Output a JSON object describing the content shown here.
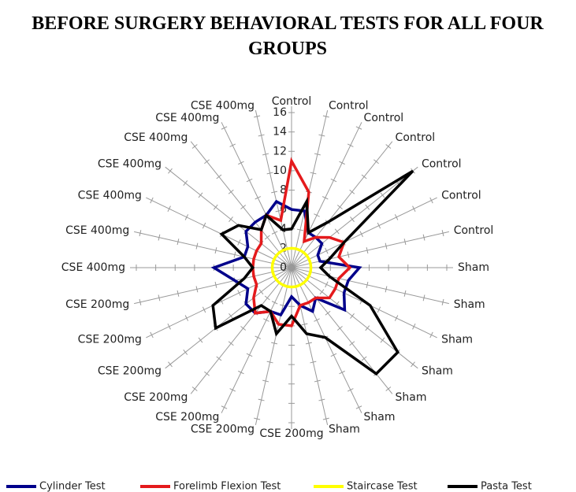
{
  "chart_data": {
    "type": "radar",
    "title": "BEFORE SURGERY BEHAVIORAL TESTS FOR ALL FOUR GROUPS",
    "categories": [
      "Control",
      "Control",
      "Control",
      "Control",
      "Control",
      "Control",
      "Control",
      "Sham",
      "Sham",
      "Sham",
      "Sham",
      "Sham",
      "Sham",
      "Sham",
      "CSE 200mg",
      "CSE 200mg",
      "CSE 200mg",
      "CSE 200mg",
      "CSE 200mg",
      "CSE 200mg",
      "CSE 200mg",
      "CSE 400mg",
      "CSE 400mg",
      "CSE 400mg",
      "CSE 400mg",
      "CSE 400mg",
      "CSE 400mg",
      "CSE 400mg"
    ],
    "series": [
      {
        "name": "Cylinder Test",
        "color": "#00008b",
        "values": [
          6,
          6,
          4,
          4,
          4,
          3,
          3,
          7,
          6,
          6,
          7,
          4,
          5,
          4,
          3,
          5,
          5,
          6,
          6,
          5,
          6,
          8,
          5,
          5,
          6,
          6,
          6,
          7
        ]
      },
      {
        "name": "Forelimb Flexion Test",
        "color": "#e41a1c",
        "values": [
          11,
          8,
          3,
          4,
          5,
          6,
          5,
          6,
          5,
          5,
          5,
          4,
          4,
          4,
          6,
          6,
          5,
          6,
          5,
          4,
          4,
          4,
          4,
          4,
          4,
          5,
          6,
          5
        ]
      },
      {
        "name": "Staircase Test",
        "color": "#ffff00",
        "values": [
          2,
          2,
          2,
          2,
          2,
          2,
          2,
          2,
          2,
          2,
          2,
          2,
          2,
          2,
          2,
          2,
          2,
          2,
          2,
          2,
          2,
          2,
          2,
          2,
          2,
          2,
          2,
          2
        ]
      },
      {
        "name": "Pasta Test",
        "color": "#000000",
        "values": [
          4,
          7,
          4,
          6,
          16,
          6,
          4,
          3,
          4,
          9,
          14,
          14,
          8,
          7,
          5,
          7,
          5,
          5,
          10,
          9,
          5,
          4,
          5,
          8,
          7,
          5,
          6,
          4
        ]
      }
    ],
    "ylim": [
      0,
      16
    ],
    "yticks": [
      0,
      2,
      4,
      6,
      8,
      10,
      12,
      14,
      16
    ],
    "legend": "bottom"
  }
}
